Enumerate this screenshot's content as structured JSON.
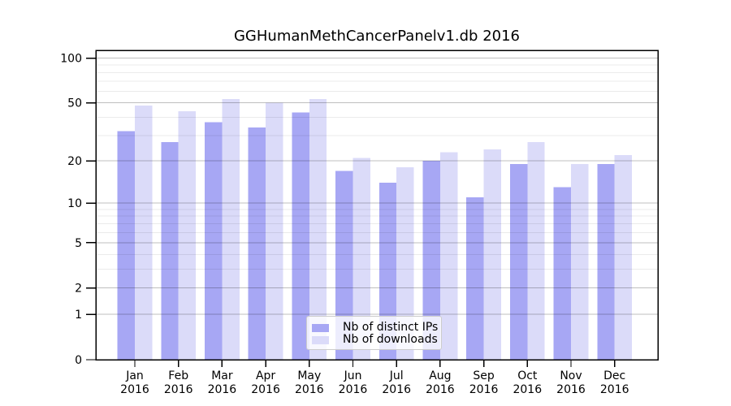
{
  "figure": {
    "background": "#ffffff"
  },
  "chart_data": {
    "type": "bar",
    "title": "GGHumanMethCancerPanelv1.db 2016",
    "xlabel": "",
    "ylabel": "",
    "categories": [
      "Jan 2016",
      "Feb 2016",
      "Mar 2016",
      "Apr 2016",
      "May 2016",
      "Jun 2016",
      "Jul 2016",
      "Aug 2016",
      "Sep 2016",
      "Oct 2016",
      "Nov 2016",
      "Dec 2016"
    ],
    "series": [
      {
        "name": "Nb of distinct IPs",
        "color": "#a7a7f4",
        "values": [
          32,
          27,
          37,
          34,
          43,
          17,
          14,
          20,
          11,
          19,
          13,
          19
        ]
      },
      {
        "name": "Nb of downloads",
        "color": "#dbdbf9",
        "values": [
          48,
          44,
          53,
          50,
          53,
          21,
          18,
          23,
          24,
          27,
          19,
          22
        ]
      }
    ],
    "yscale": "log1p",
    "ylim": [
      0,
      112
    ],
    "yticks": [
      0,
      1,
      2,
      5,
      10,
      20,
      50,
      100
    ],
    "minor_yticks": [
      3,
      4,
      6,
      7,
      8,
      9,
      30,
      40,
      60,
      70,
      80,
      90
    ],
    "grid": true,
    "legend_position": "lower center",
    "axis_color": "#000000",
    "major_grid_color": "rgba(0,0,0,0.25)",
    "minor_grid_color": "rgba(0,0,0,0.08)"
  }
}
